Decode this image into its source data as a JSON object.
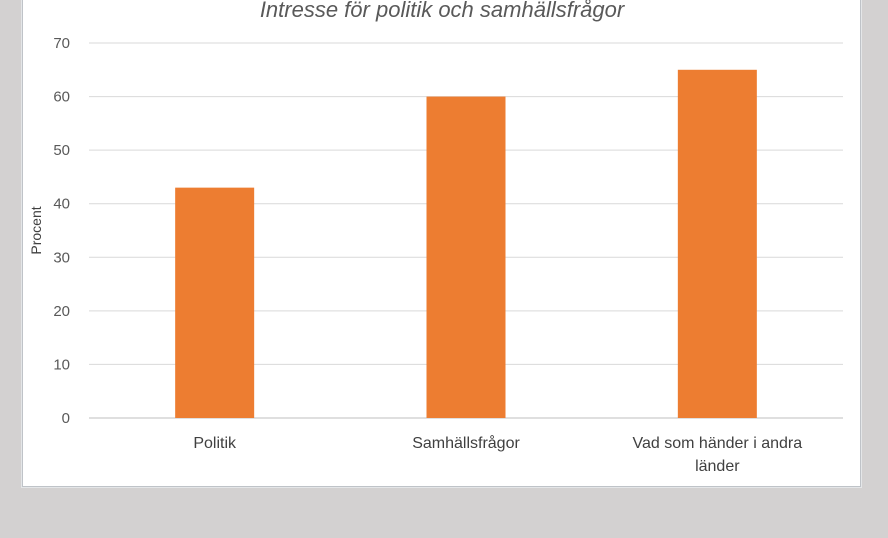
{
  "chart_data": {
    "type": "bar",
    "title": "Intresse för politik och samhällsfrågor",
    "xlabel": "",
    "ylabel": "Procent",
    "categories": [
      [
        "Politik"
      ],
      [
        "Samhällsfrågor"
      ],
      [
        "Vad som händer i andra",
        "länder"
      ]
    ],
    "values": [
      43,
      60,
      65
    ],
    "ylim": [
      0,
      70
    ],
    "yticks": [
      0,
      10,
      20,
      30,
      40,
      50,
      60,
      70
    ],
    "grid": true,
    "legend": "none",
    "bar_color": "#ed7d31"
  }
}
